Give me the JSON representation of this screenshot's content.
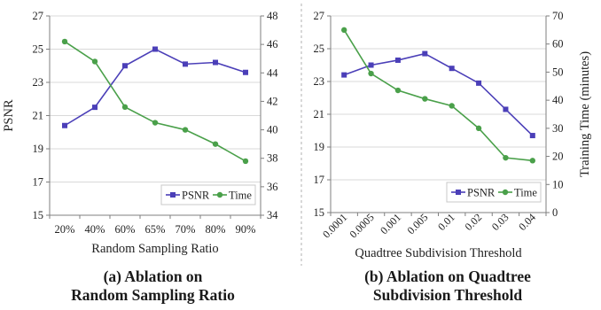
{
  "colors": {
    "psnr": "#4b3fb8",
    "time": "#4aa04a",
    "axis": "#7f7f7f",
    "grid": "#d9d9d9",
    "divider": "#b0b0b0"
  },
  "chart_data": [
    {
      "type": "line",
      "id": "a",
      "categories": [
        "20%",
        "40%",
        "60%",
        "65%",
        "70%",
        "80%",
        "90%"
      ],
      "series": [
        {
          "name": "PSNR",
          "axis": "left",
          "values": [
            20.4,
            21.5,
            24.0,
            25.0,
            24.1,
            24.2,
            23.6
          ]
        },
        {
          "name": "Time",
          "axis": "right",
          "values": [
            46.2,
            44.8,
            41.6,
            40.5,
            40.0,
            39.0,
            37.8
          ]
        }
      ],
      "xlabel": "Random Sampling Ratio",
      "ylabel": "PSNR",
      "y2label": "",
      "ylim": [
        15,
        27
      ],
      "y2lim": [
        34,
        48
      ],
      "yticks": [
        "15",
        "17",
        "19",
        "21",
        "23",
        "25",
        "27"
      ],
      "y2ticks": [
        "34",
        "36",
        "38",
        "40",
        "42",
        "44",
        "46",
        "48"
      ],
      "legend": {
        "position": "bottom-right",
        "labels": [
          "PSNR",
          "Time"
        ]
      },
      "caption": [
        "(a)  Ablation on",
        "Random Sampling Ratio"
      ]
    },
    {
      "type": "line",
      "id": "b",
      "categories": [
        "0.0001",
        "0.0005",
        "0.001",
        "0.005",
        "0.01",
        "0.02",
        "0.03",
        "0.04"
      ],
      "series": [
        {
          "name": "PSNR",
          "axis": "left",
          "values": [
            23.4,
            24.0,
            24.3,
            24.7,
            23.8,
            22.9,
            21.3,
            19.7
          ]
        },
        {
          "name": "Time",
          "axis": "right",
          "values": [
            65.0,
            49.5,
            43.5,
            40.5,
            38.0,
            30.0,
            19.5,
            18.5
          ]
        }
      ],
      "xlabel": "Quadtree Subdivision Threshold",
      "ylabel": "",
      "y2label": "Training Time (minutes)",
      "ylim": [
        15,
        27
      ],
      "y2lim": [
        0,
        70
      ],
      "yticks": [
        "15",
        "17",
        "19",
        "21",
        "23",
        "25",
        "27"
      ],
      "y2ticks": [
        "0",
        "10",
        "20",
        "30",
        "40",
        "50",
        "60",
        "70"
      ],
      "legend": {
        "position": "bottom-right",
        "labels": [
          "PSNR",
          "Time"
        ]
      },
      "caption": [
        "(b) Ablation on Quadtree",
        "Subdivision Threshold"
      ]
    }
  ]
}
